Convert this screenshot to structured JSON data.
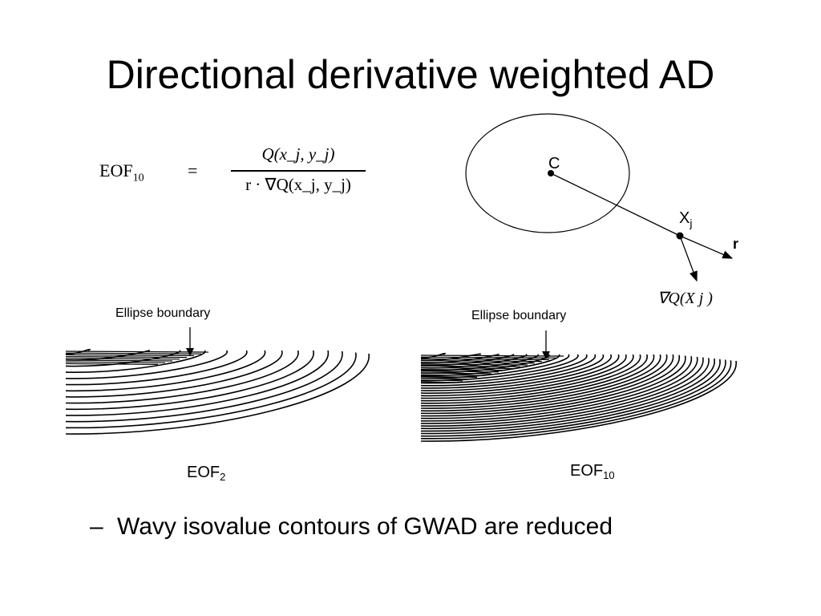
{
  "slide": {
    "title": "Directional derivative weighted AD",
    "bullet": "Wavy isovalue contours of GWAD are reduced",
    "bullet_marker": "–"
  },
  "formula": {
    "lhs": "EOF",
    "lhs_sub": "10",
    "equals": "=",
    "numerator": "Q(x_j, y_j)",
    "denominator": "r · ∇Q(x_j, y_j)"
  },
  "diagram": {
    "center_label": "C",
    "point_label": "X",
    "point_label_sub": "j",
    "direction_label": "r",
    "gradient_label": "∇Q(X j )"
  },
  "panels": [
    {
      "boundary_caption": "Ellipse boundary",
      "label": "EOF",
      "label_sub": "2"
    },
    {
      "boundary_caption": "Ellipse boundary",
      "label": "EOF",
      "label_sub": "10"
    }
  ]
}
